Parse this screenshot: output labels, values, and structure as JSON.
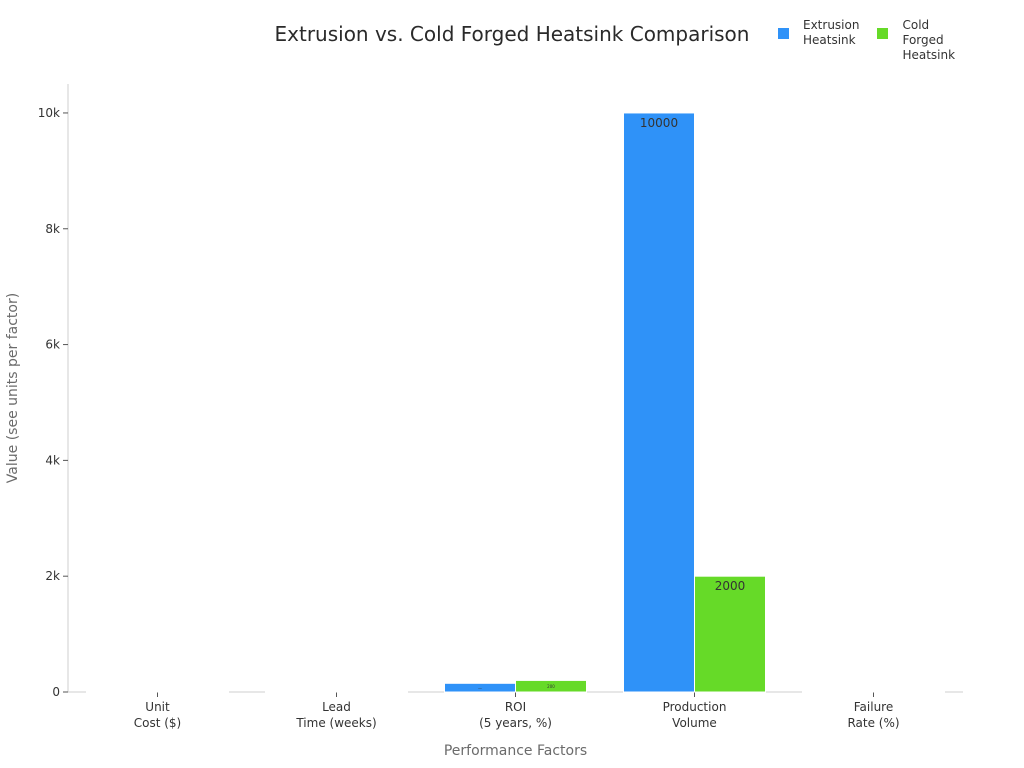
{
  "chart_data": {
    "type": "bar",
    "title": "Extrusion vs. Cold Forged Heatsink Comparison",
    "xlabel": "Performance Factors",
    "ylabel": "Value (see units per factor)",
    "categories": [
      "Unit\nCost ($)",
      "Lead\nTime (weeks)",
      "ROI\n(5 years, %)",
      "Production\nVolume",
      "Failure\nRate (%)"
    ],
    "series": [
      {
        "name": "Extrusion\nHeatsink",
        "color": "#2f92f8",
        "values": [
          10,
          4,
          150,
          10000,
          2
        ]
      },
      {
        "name": "Cold\nForged\nHeatsink",
        "color": "#66da28",
        "values": [
          15,
          3,
          200,
          2000,
          1
        ]
      }
    ],
    "data_labels": [
      [
        "",
        "",
        "—",
        "10000",
        ""
      ],
      [
        "",
        "",
        "200",
        "2000",
        ""
      ]
    ],
    "ylim": [
      0,
      10500
    ],
    "yticks": [
      0,
      2000,
      4000,
      6000,
      8000,
      10000
    ],
    "ytick_labels": [
      "0",
      "2k",
      "4k",
      "6k",
      "8k",
      "10k"
    ],
    "grid": false,
    "legend_position": "top-right"
  }
}
